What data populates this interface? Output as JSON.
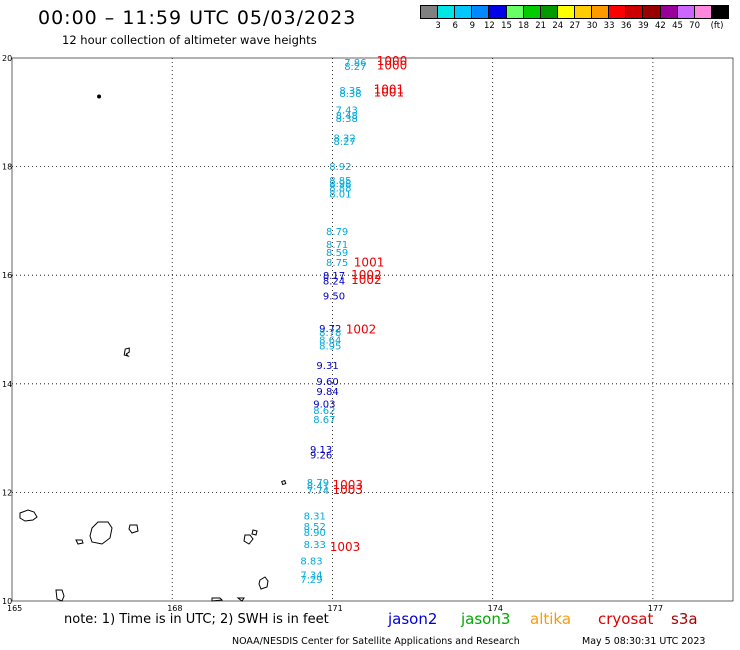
{
  "header": {
    "title": "00:00 – 11:59 UTC 05/03/2023",
    "subtitle": "12 hour collection of altimeter wave heights"
  },
  "scale": {
    "unit": "(ft)",
    "swatches": [
      {
        "color": "#808080",
        "label": ""
      },
      {
        "color": "#00e5e5",
        "label": "3"
      },
      {
        "color": "#00c8ff",
        "label": "6"
      },
      {
        "color": "#0088ff",
        "label": "9"
      },
      {
        "color": "#0000e8",
        "label": "12"
      },
      {
        "color": "#66ff66",
        "label": "15"
      },
      {
        "color": "#00cc00",
        "label": "18"
      },
      {
        "color": "#009900",
        "label": "21"
      },
      {
        "color": "#ffff00",
        "label": "24"
      },
      {
        "color": "#ffcc00",
        "label": "27"
      },
      {
        "color": "#ff9900",
        "label": "30"
      },
      {
        "color": "#ff0000",
        "label": "33"
      },
      {
        "color": "#cc0000",
        "label": "36"
      },
      {
        "color": "#990000",
        "label": "39"
      },
      {
        "color": "#990099",
        "label": "42"
      },
      {
        "color": "#cc66ff",
        "label": "45"
      },
      {
        "color": "#ff88dd",
        "label": "70"
      },
      {
        "color": "#000000",
        "label": ""
      }
    ]
  },
  "map": {
    "lon_ticks": [
      "165",
      "168",
      "171",
      "174",
      "177"
    ],
    "lat_ticks": [
      "20",
      "18",
      "16",
      "14",
      "12",
      "10"
    ],
    "bounds": {
      "lon_min": 165,
      "lon_max": 178.5,
      "lat_min": 10,
      "lat_max": 20
    }
  },
  "observations": [
    {
      "lon": 171.22,
      "lat": 19.85,
      "v": "7.86",
      "c": "#00aadd"
    },
    {
      "lon": 171.22,
      "lat": 19.78,
      "v": "8.27",
      "c": "#00aadd"
    },
    {
      "lon": 171.13,
      "lat": 19.34,
      "v": "8.35",
      "c": "#00aadd"
    },
    {
      "lon": 171.13,
      "lat": 19.28,
      "v": "8.38",
      "c": "#00aadd"
    },
    {
      "lon": 171.06,
      "lat": 18.98,
      "v": "7.43",
      "c": "#00aadd"
    },
    {
      "lon": 171.06,
      "lat": 18.88,
      "v": "8.48",
      "c": "#00aadd"
    },
    {
      "lon": 171.06,
      "lat": 18.82,
      "v": "8.38",
      "c": "#00aadd"
    },
    {
      "lon": 171.02,
      "lat": 18.46,
      "v": "8.32",
      "c": "#00aadd"
    },
    {
      "lon": 171.02,
      "lat": 18.4,
      "v": "8.27",
      "c": "#00aadd"
    },
    {
      "lon": 170.94,
      "lat": 17.94,
      "v": "8.92",
      "c": "#00aadd"
    },
    {
      "lon": 170.94,
      "lat": 17.68,
      "v": "8.85",
      "c": "#00aadd"
    },
    {
      "lon": 170.94,
      "lat": 17.62,
      "v": "8.98",
      "c": "#00aadd"
    },
    {
      "lon": 170.94,
      "lat": 17.54,
      "v": "8.88",
      "c": "#00aadd"
    },
    {
      "lon": 170.94,
      "lat": 17.43,
      "v": "8.01",
      "c": "#00aadd"
    },
    {
      "lon": 170.88,
      "lat": 16.74,
      "v": "8.79",
      "c": "#00aadd"
    },
    {
      "lon": 170.88,
      "lat": 16.5,
      "v": "8.71",
      "c": "#00aadd"
    },
    {
      "lon": 170.88,
      "lat": 16.35,
      "v": "8.59",
      "c": "#00aadd"
    },
    {
      "lon": 170.88,
      "lat": 16.17,
      "v": "8.75",
      "c": "#00aadd"
    },
    {
      "lon": 170.82,
      "lat": 15.93,
      "v": "8.17",
      "c": "#0000cc"
    },
    {
      "lon": 170.82,
      "lat": 15.83,
      "v": "8.24",
      "c": "#0000cc"
    },
    {
      "lon": 170.82,
      "lat": 15.55,
      "v": "9.50",
      "c": "#0000cc"
    },
    {
      "lon": 170.75,
      "lat": 14.95,
      "v": "9.72",
      "c": "#0000cc"
    },
    {
      "lon": 170.75,
      "lat": 14.88,
      "v": "8.78",
      "c": "#00aadd"
    },
    {
      "lon": 170.75,
      "lat": 14.74,
      "v": "8.64",
      "c": "#00aadd"
    },
    {
      "lon": 170.75,
      "lat": 14.63,
      "v": "8.95",
      "c": "#00aadd"
    },
    {
      "lon": 170.7,
      "lat": 14.27,
      "v": "9.31",
      "c": "#0000cc"
    },
    {
      "lon": 170.7,
      "lat": 13.98,
      "v": "9.60",
      "c": "#0000cc"
    },
    {
      "lon": 170.7,
      "lat": 13.79,
      "v": "9.84",
      "c": "#0000cc"
    },
    {
      "lon": 170.64,
      "lat": 13.56,
      "v": "9.03",
      "c": "#0000cc"
    },
    {
      "lon": 170.64,
      "lat": 13.44,
      "v": "8.62",
      "c": "#00aadd"
    },
    {
      "lon": 170.64,
      "lat": 13.28,
      "v": "8.67",
      "c": "#00aadd"
    },
    {
      "lon": 170.58,
      "lat": 12.73,
      "v": "9.13",
      "c": "#0000cc"
    },
    {
      "lon": 170.58,
      "lat": 12.62,
      "v": "9.26",
      "c": "#0000cc"
    },
    {
      "lon": 170.52,
      "lat": 12.12,
      "v": "8.79",
      "c": "#00aadd"
    },
    {
      "lon": 170.52,
      "lat": 12.05,
      "v": "8.41",
      "c": "#00aadd"
    },
    {
      "lon": 170.52,
      "lat": 11.97,
      "v": "7.74",
      "c": "#00aadd"
    },
    {
      "lon": 170.46,
      "lat": 11.5,
      "v": "8.31",
      "c": "#00aadd"
    },
    {
      "lon": 170.46,
      "lat": 11.31,
      "v": "8.52",
      "c": "#00aadd"
    },
    {
      "lon": 170.46,
      "lat": 11.2,
      "v": "8.90",
      "c": "#00aadd"
    },
    {
      "lon": 170.46,
      "lat": 10.98,
      "v": "8.33",
      "c": "#00aadd"
    },
    {
      "lon": 170.4,
      "lat": 10.67,
      "v": "8.83",
      "c": "#00aadd"
    },
    {
      "lon": 170.4,
      "lat": 10.41,
      "v": "7.34",
      "c": "#00aadd"
    },
    {
      "lon": 170.4,
      "lat": 10.33,
      "v": "7.29",
      "c": "#00aadd"
    }
  ],
  "pressures": [
    {
      "lon": 171.83,
      "lat": 19.87,
      "v": "1000"
    },
    {
      "lon": 171.83,
      "lat": 19.79,
      "v": "1000"
    },
    {
      "lon": 171.77,
      "lat": 19.35,
      "v": "1001"
    },
    {
      "lon": 171.77,
      "lat": 19.29,
      "v": "1001"
    },
    {
      "lon": 171.4,
      "lat": 16.16,
      "v": "1001"
    },
    {
      "lon": 171.35,
      "lat": 15.93,
      "v": "1002"
    },
    {
      "lon": 171.35,
      "lat": 15.84,
      "v": "1002"
    },
    {
      "lon": 171.25,
      "lat": 14.93,
      "v": "1002"
    },
    {
      "lon": 171.0,
      "lat": 12.06,
      "v": "1003"
    },
    {
      "lon": 171.0,
      "lat": 11.97,
      "v": "1003"
    },
    {
      "lon": 170.95,
      "lat": 10.92,
      "v": "1003"
    }
  ],
  "islands": [
    {
      "name": "n1",
      "lon": 166.63,
      "lat": 19.29
    },
    {
      "name": "n2",
      "lon": 167.14,
      "lat": 14.6
    },
    {
      "name": "n3",
      "lon": 170.07,
      "lat": 12.19
    }
  ],
  "footer": {
    "note": "note: 1) Time is in UTC; 2) SWH is in feet",
    "credit": "NOAA/NESDIS Center for Satellite Applications and Research",
    "date": "May  5 08:30:31 UTC 2023",
    "satellites": [
      {
        "name": "jason2",
        "color": "#0000dd"
      },
      {
        "name": "jason3",
        "color": "#00aa00"
      },
      {
        "name": "altika",
        "color": "#ff9900"
      },
      {
        "name": "cryosat",
        "color": "#dd0000"
      },
      {
        "name": "s3a",
        "color": "#aa0000"
      }
    ]
  }
}
